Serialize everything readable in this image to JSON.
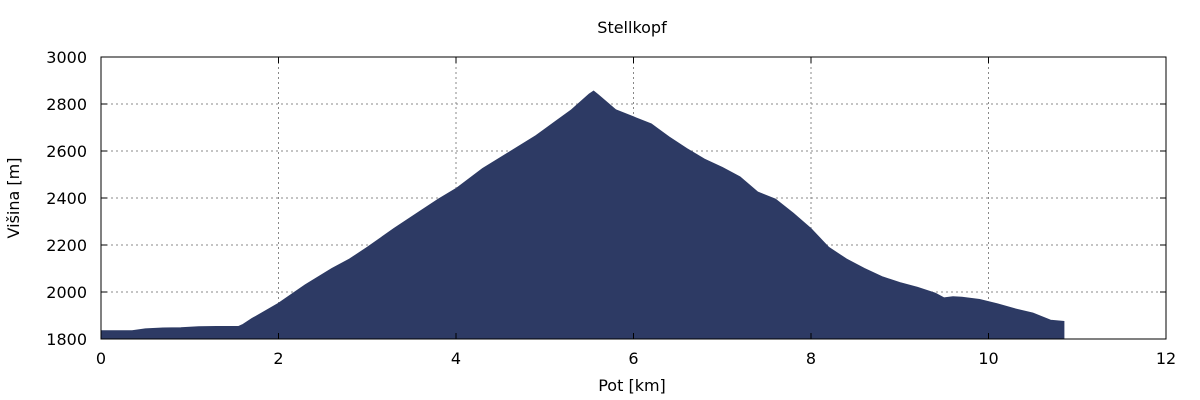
{
  "chart_data": {
    "type": "area",
    "title": "Stellkopf",
    "xlabel": "Pot [km]",
    "ylabel": "Višina [m]",
    "xlim": [
      0,
      12
    ],
    "ylim": [
      1800,
      3000
    ],
    "x_ticks": [
      "0",
      "2",
      "4",
      "6",
      "8",
      "10",
      "12"
    ],
    "y_ticks": [
      "1800",
      "2000",
      "2200",
      "2400",
      "2600",
      "2800",
      "3000"
    ],
    "grid": true,
    "legend": "none",
    "fill_color": "#2d3a64",
    "series": [
      {
        "x": [
          0,
          0.2,
          0.35,
          0.5,
          0.7,
          0.9,
          1.1,
          1.3,
          1.55,
          1.6,
          1.7,
          2.0,
          2.3,
          2.6,
          2.8,
          3.0,
          3.3,
          3.6,
          3.8,
          4.0,
          4.3,
          4.6,
          4.9,
          5.1,
          5.3,
          5.5,
          5.55,
          5.6,
          5.8,
          6.0,
          6.2,
          6.4,
          6.6,
          6.8,
          7.0,
          7.2,
          7.4,
          7.6,
          7.8,
          8.0,
          8.2,
          8.4,
          8.6,
          8.8,
          9.0,
          9.2,
          9.4,
          9.5,
          9.6,
          9.7,
          9.9,
          10.1,
          10.3,
          10.5,
          10.7,
          10.85
        ],
        "y": [
          1835,
          1835,
          1835,
          1843,
          1847,
          1848,
          1852,
          1853,
          1853,
          1862,
          1887,
          1952,
          2030,
          2100,
          2140,
          2190,
          2270,
          2345,
          2395,
          2440,
          2525,
          2595,
          2665,
          2720,
          2775,
          2842,
          2855,
          2840,
          2775,
          2745,
          2715,
          2660,
          2610,
          2565,
          2530,
          2490,
          2425,
          2395,
          2335,
          2270,
          2190,
          2140,
          2100,
          2065,
          2040,
          2020,
          1995,
          1975,
          1980,
          1978,
          1968,
          1950,
          1928,
          1910,
          1880,
          1875
        ]
      }
    ]
  }
}
